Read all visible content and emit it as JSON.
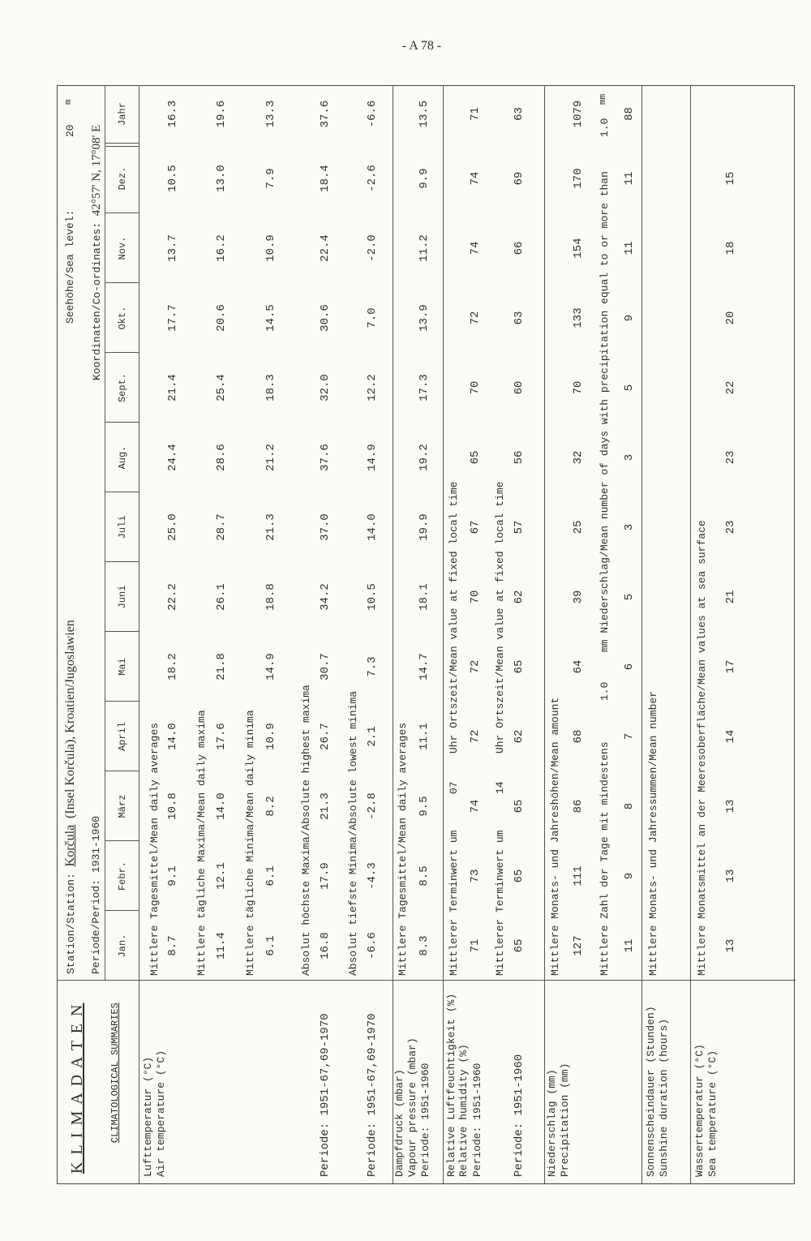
{
  "page_number": "- A 78 -",
  "title": "K L I M A D A T E N",
  "subtitle": "CLIMATOLOGICAL SUMMARIES",
  "header": {
    "station_label": "Station/Station:",
    "station_name": "Korčula",
    "station_rest": "(Insel Korčula), Kroatien/Jugoslawien",
    "period_label": "Periode/Period:",
    "period_value": "1931-1960",
    "sea_level_label": "Seehöhe/Sea level:",
    "sea_level_value": "20",
    "sea_level_unit": "m",
    "coordinates_label": "Koordinaten/Co-ordinates:",
    "coordinates_value": "42°57' N, 17°08' E"
  },
  "columns": [
    "Jan.",
    "Febr.",
    "März",
    "April",
    "Mai",
    "Juni",
    "Juli",
    "Aug.",
    "Sept.",
    "Okt.",
    "Nov.",
    "Dez.",
    "Jahr"
  ],
  "sections": [
    {
      "labels": [
        "Lufttemperatur  (°C)",
        "Air temperature (°C)"
      ],
      "rows": [
        {
          "subheader": "Mittlere Tagesmittel/Mean daily averages",
          "values": [
            "8.7",
            "9.1",
            "10.8",
            "14.0",
            "18.2",
            "22.2",
            "25.0",
            "24.4",
            "21.4",
            "17.7",
            "13.7",
            "10.5",
            "16.3"
          ]
        },
        {
          "subheader": "Mittlere tägliche Maxima/Mean daily maxima",
          "values": [
            "11.4",
            "12.1",
            "14.0",
            "17.6",
            "21.8",
            "26.1",
            "28.7",
            "28.6",
            "25.4",
            "20.6",
            "16.2",
            "13.0",
            "19.6"
          ]
        },
        {
          "subheader": "Mittlere tägliche Minima/Mean daily minima",
          "values": [
            "6.1",
            "6.1",
            "8.2",
            "10.9",
            "14.9",
            "18.8",
            "21.3",
            "21.2",
            "18.3",
            "14.5",
            "10.9",
            "7.9",
            "13.3"
          ]
        },
        {
          "subheader": "Absolut höchste Maxima/Absolute highest maxima",
          "values": [
            "16.8",
            "17.9",
            "21.3",
            "26.7",
            "30.7",
            "34.2",
            "37.0",
            "37.6",
            "32.0",
            "30.6",
            "22.4",
            "18.4",
            "37.6"
          ],
          "period": "Periode: 1951-67,69-1970"
        },
        {
          "subheader": "Absolut tiefste Minima/Absolute lowest  minima",
          "values": [
            "-6.6",
            "-4.3",
            "-2.8",
            "2.1",
            "7.3",
            "10.5",
            "14.0",
            "14.9",
            "12.2",
            "7.0",
            "-2.0",
            "-2.6",
            "-6.6"
          ],
          "period": "Periode: 1951-67,69-1970"
        }
      ]
    },
    {
      "labels": [
        "Dampfdruck (mbar)",
        "Vapour pressure (mbar)",
        "Periode: 1951-1960"
      ],
      "rows": [
        {
          "subheader": "Mittlere Tagesmittel/Mean daily averages",
          "values": [
            "8.3",
            "8.5",
            "9.5",
            "11.1",
            "14.7",
            "18.1",
            "19.9",
            "19.2",
            "17.3",
            "13.9",
            "11.2",
            "9.9",
            "13.5"
          ]
        }
      ]
    },
    {
      "labels": [
        "Relative Luftfeuchtigkeit (%)",
        "Relative humidity (%)",
        "Periode: 1951-1960"
      ],
      "rows": [
        {
          "subheader": "Mittlerer Terminwert um",
          "hour": "07",
          "subheader_rest": "Uhr Ortszeit/Mean value at fixed local time",
          "values": [
            "71",
            "73",
            "74",
            "72",
            "72",
            "70",
            "67",
            "65",
            "70",
            "72",
            "74",
            "74",
            "71"
          ]
        },
        {
          "subheader": "Mittlerer Terminwert um",
          "hour": "14",
          "subheader_rest": "Uhr Ortszeit/Mean value at fixed local time",
          "values": [
            "65",
            "65",
            "65",
            "62",
            "65",
            "62",
            "57",
            "56",
            "60",
            "63",
            "66",
            "69",
            "63"
          ],
          "period": "Periode: 1951-1960"
        }
      ]
    },
    {
      "labels": [
        "Niederschlag  (mm)",
        "Precipitation (mm)"
      ],
      "rows": [
        {
          "subheader": "Mittlere Monats- und Jahreshöhen/Mean amount",
          "values": [
            "127",
            "111",
            "86",
            "68",
            "64",
            "39",
            "25",
            "32",
            "70",
            "133",
            "154",
            "170",
            "1079"
          ]
        },
        {
          "subheader": "Mittlere Zahl der Tage mit mindestens",
          "hour": "1.0",
          "subheader_rest": "mm Niederschlag/Mean number of days with precipitation equal to or more than",
          "tail_value": "1.0",
          "tail_unit": "mm",
          "values": [
            "11",
            "9",
            "8",
            "7",
            "6",
            "5",
            "3",
            "3",
            "5",
            "9",
            "11",
            "11",
            "88"
          ]
        }
      ]
    },
    {
      "labels": [
        "Sonnenscheindauer (Stunden)",
        "Sunshine duration (hours)"
      ],
      "rows": [
        {
          "subheader": "Mittlere Monats- und Jahressummen/Mean number",
          "values": []
        }
      ]
    },
    {
      "labels": [
        "Wassertemperatur (°C)",
        "Sea temperature  (°C)"
      ],
      "rows": [
        {
          "subheader": "Mittlere Monatsmittel an der Meeresoberfläche/Mean values at sea surface",
          "values": [
            "13",
            "13",
            "13",
            "14",
            "17",
            "21",
            "23",
            "23",
            "22",
            "20",
            "18",
            "15",
            ""
          ]
        }
      ]
    }
  ]
}
